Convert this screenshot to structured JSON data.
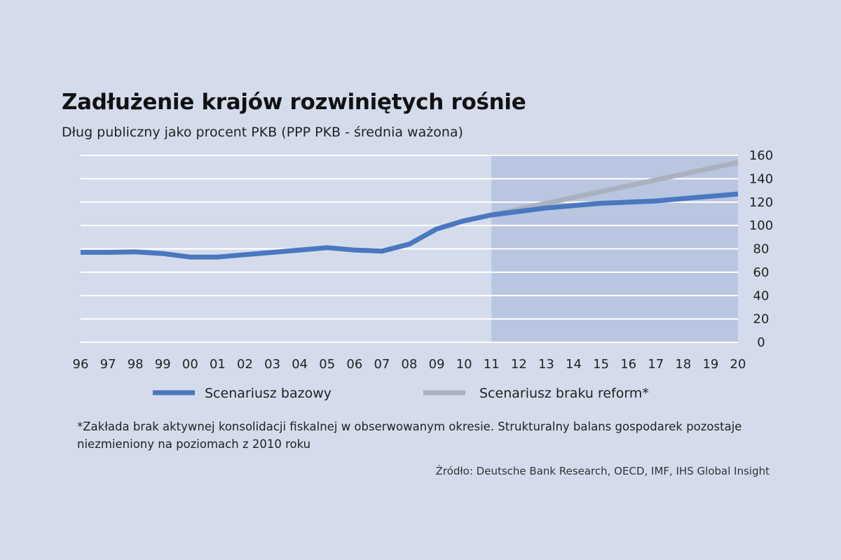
{
  "chart_data": {
    "type": "line",
    "title": "Zadłużenie krajów rozwiniętych rośnie",
    "subtitle": "Dług publiczny jako procent PKB (PPP PKB - średnia ważona)",
    "categories": [
      "96",
      "97",
      "98",
      "99",
      "00",
      "01",
      "02",
      "03",
      "04",
      "05",
      "06",
      "07",
      "08",
      "09",
      "10",
      "11",
      "12",
      "13",
      "14",
      "15",
      "16",
      "17",
      "18",
      "19",
      "20"
    ],
    "series": [
      {
        "name": "Scenariusz bazowy",
        "color": "#4a78bf",
        "values": [
          77,
          77,
          77.5,
          76,
          73,
          73,
          75,
          77,
          79,
          81,
          79,
          78,
          84,
          97,
          104,
          109,
          112,
          115,
          117,
          119,
          120,
          121,
          123,
          125,
          127
        ]
      },
      {
        "name": "Scenariusz braku reform*",
        "color": "#a9b1bf",
        "values": [
          null,
          null,
          null,
          null,
          null,
          null,
          null,
          null,
          null,
          null,
          null,
          null,
          null,
          null,
          null,
          109,
          114,
          119,
          124,
          129,
          134,
          139,
          144,
          149,
          154
        ]
      }
    ],
    "y_ticks": [
      0,
      20,
      40,
      60,
      80,
      100,
      120,
      140,
      160
    ],
    "ylim": [
      0,
      160
    ],
    "y_axis_side": "right",
    "grid": true,
    "forecast_region": {
      "from": "11",
      "to": "20",
      "color": "#b4c2df"
    },
    "legend": "bottom"
  },
  "footnote": "*Zakłada brak aktywnej konsolidacji fiskalnej w obserwowanym okresie. Strukturalny balans gospodarek pozostaje niezmieniony na poziomach z 2010 roku",
  "source": "Źródło: Deutsche Bank Research, OECD, IMF, IHS Global Insight"
}
